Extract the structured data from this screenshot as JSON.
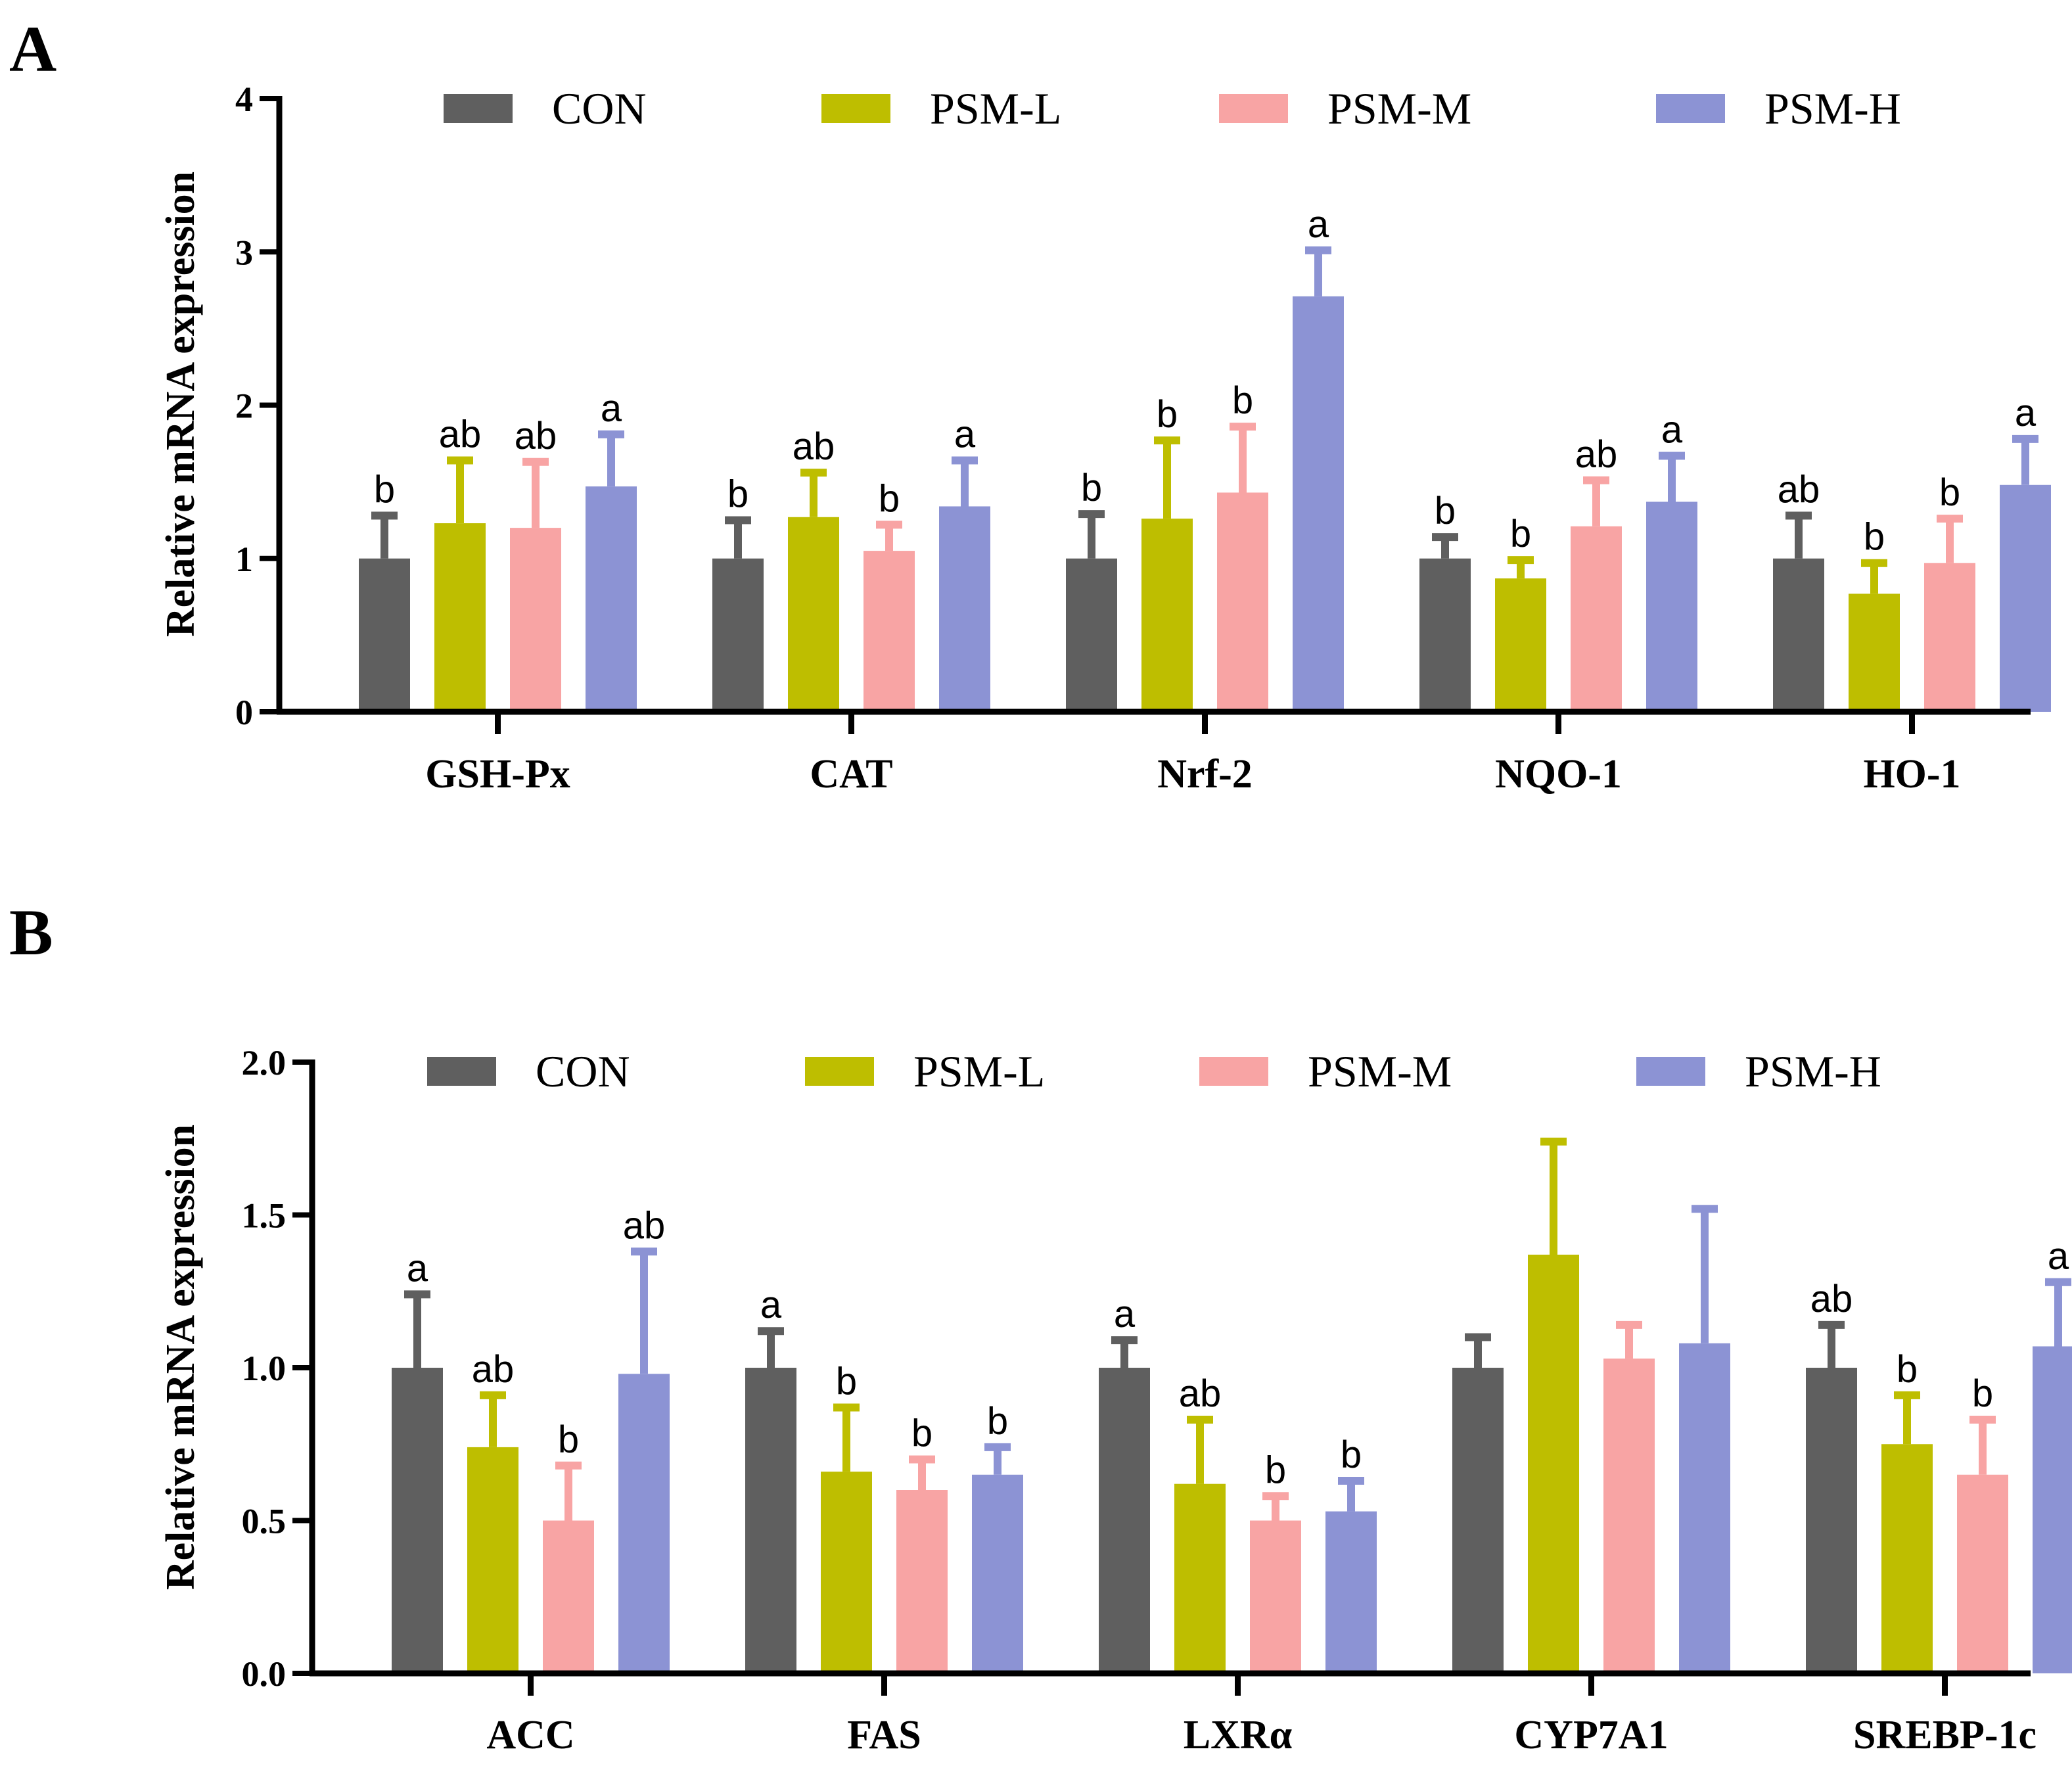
{
  "chart_data": [
    {
      "panel_label": "A",
      "type": "bar",
      "ylabel": "Relative mRNA expression",
      "xlabel": "",
      "ylim": [
        0,
        4
      ],
      "yticks": [
        0,
        1,
        2,
        3,
        4
      ],
      "ytick_labels": [
        "0",
        "1",
        "2",
        "3",
        "4"
      ],
      "categories": [
        "GSH-Px",
        "CAT",
        "Nrf-2",
        "NQO-1",
        "HO-1"
      ],
      "legend_position": "top",
      "series": [
        {
          "name": "CON",
          "color": "#5f5f5f",
          "values": [
            1.0,
            1.0,
            1.0,
            1.0,
            1.0
          ],
          "errors": [
            0.28,
            0.25,
            0.29,
            0.14,
            0.28
          ],
          "labels": [
            "b",
            "b",
            "b",
            "b",
            "ab"
          ]
        },
        {
          "name": "PSM-L",
          "color": "#bebe00",
          "values": [
            1.23,
            1.27,
            1.26,
            0.87,
            0.77
          ],
          "errors": [
            0.41,
            0.29,
            0.51,
            0.12,
            0.2
          ],
          "labels": [
            "ab",
            "ab",
            "b",
            "b",
            "b"
          ]
        },
        {
          "name": "PSM-M",
          "color": "#f8a4a4",
          "values": [
            1.2,
            1.05,
            1.43,
            1.21,
            0.97
          ],
          "errors": [
            0.43,
            0.17,
            0.43,
            0.3,
            0.29
          ],
          "labels": [
            "ab",
            "b",
            "b",
            "ab",
            "b"
          ]
        },
        {
          "name": "PSM-H",
          "color": "#8c93d4",
          "values": [
            1.47,
            1.34,
            2.71,
            1.37,
            1.48
          ],
          "errors": [
            0.34,
            0.3,
            0.3,
            0.3,
            0.3
          ],
          "labels": [
            "a",
            "a",
            "a",
            "a",
            "a"
          ]
        }
      ]
    },
    {
      "panel_label": "B",
      "type": "bar",
      "ylabel": "Relative mRNA expression",
      "xlabel": "",
      "ylim": [
        0,
        2
      ],
      "yticks": [
        0,
        0.5,
        1,
        1.5,
        2
      ],
      "ytick_labels": [
        "0.0",
        "0.5",
        "1.0",
        "1.5",
        "2.0"
      ],
      "categories": [
        "ACC",
        "FAS",
        "LXRα",
        "CYP7A1",
        "SREBP-1c"
      ],
      "legend_position": "top",
      "series": [
        {
          "name": "CON",
          "color": "#5f5f5f",
          "values": [
            1.0,
            1.0,
            1.0,
            1.0,
            1.0
          ],
          "errors": [
            0.24,
            0.12,
            0.09,
            0.1,
            0.14
          ],
          "labels": [
            "a",
            "a",
            "a",
            "",
            "ab"
          ]
        },
        {
          "name": "PSM-L",
          "color": "#bebe00",
          "values": [
            0.74,
            0.66,
            0.62,
            1.37,
            0.75
          ],
          "errors": [
            0.17,
            0.21,
            0.21,
            0.37,
            0.16
          ],
          "labels": [
            "ab",
            "b",
            "ab",
            "",
            "b"
          ]
        },
        {
          "name": "PSM-M",
          "color": "#f8a4a4",
          "values": [
            0.5,
            0.6,
            0.5,
            1.03,
            0.65
          ],
          "errors": [
            0.18,
            0.1,
            0.08,
            0.11,
            0.18
          ],
          "labels": [
            "b",
            "b",
            "b",
            "",
            "b"
          ]
        },
        {
          "name": "PSM-H",
          "color": "#8c93d4",
          "values": [
            0.98,
            0.65,
            0.53,
            1.08,
            1.07
          ],
          "errors": [
            0.4,
            0.09,
            0.1,
            0.44,
            0.21
          ],
          "labels": [
            "ab",
            "b",
            "b",
            "",
            "a"
          ]
        }
      ]
    }
  ]
}
